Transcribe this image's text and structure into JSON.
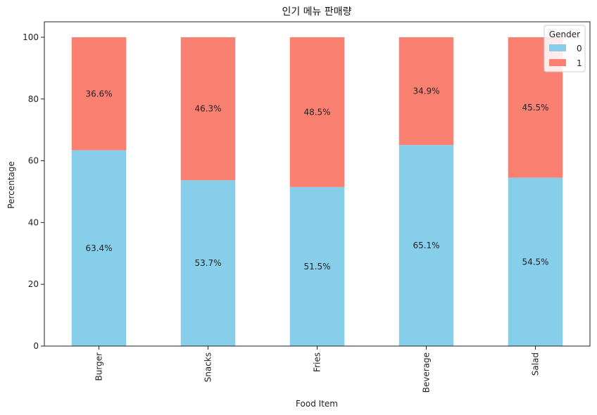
{
  "chart_data": {
    "type": "bar",
    "stacked": true,
    "title": "인기 메뉴 판매량",
    "xlabel": "Food Item",
    "ylabel": "Percentage",
    "categories": [
      "Burger",
      "Snacks",
      "Fries",
      "Beverage",
      "Salad"
    ],
    "series": [
      {
        "name": "0",
        "values": [
          63.4,
          53.7,
          51.5,
          65.1,
          54.5
        ],
        "labels": [
          "63.4%",
          "53.7%",
          "51.5%",
          "65.1%",
          "54.5%"
        ],
        "color": "#87CEEB"
      },
      {
        "name": "1",
        "values": [
          36.6,
          46.3,
          48.5,
          34.9,
          45.5
        ],
        "labels": [
          "36.6%",
          "46.3%",
          "48.5%",
          "34.9%",
          "45.5%"
        ],
        "color": "#FA8072"
      }
    ],
    "ylim": [
      0,
      105
    ],
    "yticks": [
      0,
      20,
      40,
      60,
      80,
      100
    ],
    "legend": {
      "title": "Gender",
      "placement": "top-right"
    },
    "grid": false
  }
}
